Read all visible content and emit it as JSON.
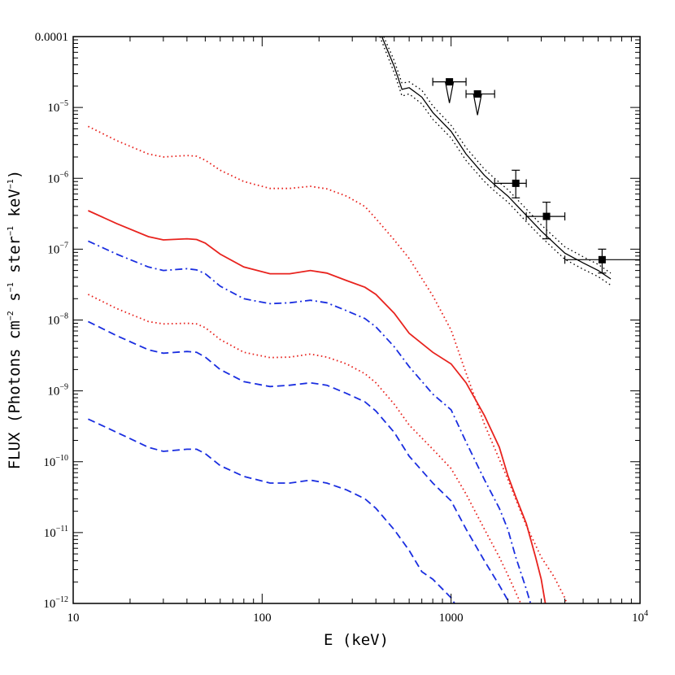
{
  "chart_data": {
    "type": "line",
    "x_scale": "log",
    "y_scale": "log",
    "xlim": [
      10,
      10000
    ],
    "ylim": [
      1e-12,
      0.0001
    ],
    "xlabel": "E (keV)",
    "ylabel": {
      "pre": "FLUX (Photons cm",
      "sup1": "−2",
      "mid1": " s",
      "sup2": "−1",
      "mid2": " ster",
      "sup3": "−1",
      "mid3": " keV",
      "sup4": "−1",
      "post": ")"
    },
    "x_ticks": [
      {
        "value": 10,
        "label": "10",
        "sup": ""
      },
      {
        "value": 100,
        "label": "100",
        "sup": ""
      },
      {
        "value": 1000,
        "label": "1000",
        "sup": ""
      },
      {
        "value": 10000,
        "label": "10",
        "sup": "4"
      }
    ],
    "y_ticks": [
      {
        "value": 0.0001,
        "label": "0.0001",
        "sup": ""
      },
      {
        "value": 1e-05,
        "label": "10",
        "sup": "−5"
      },
      {
        "value": 1e-06,
        "label": "10",
        "sup": "−6"
      },
      {
        "value": 1e-07,
        "label": "10",
        "sup": "−7"
      },
      {
        "value": 1e-08,
        "label": "10",
        "sup": "−8"
      },
      {
        "value": 1e-09,
        "label": "10",
        "sup": "−9"
      },
      {
        "value": 1e-10,
        "label": "10",
        "sup": "−10"
      },
      {
        "value": 1e-11,
        "label": "10",
        "sup": "−11"
      },
      {
        "value": 1e-12,
        "label": "10",
        "sup": "−12"
      }
    ],
    "colors": {
      "red": "#e8231e",
      "blue": "#1a2ee0",
      "black": "#000000"
    },
    "series": [
      {
        "color": "red",
        "style": "dotted",
        "x": [
          12,
          17,
          25,
          30,
          40,
          45,
          50,
          60,
          80,
          110,
          140,
          180,
          220,
          280,
          350,
          400,
          500,
          600,
          800,
          1000,
          1200,
          1500,
          2000,
          2500,
          3000,
          3500,
          4000,
          4500
        ],
        "y": [
          5.4e-06,
          3.4e-06,
          2.2e-06,
          2e-06,
          2.1e-06,
          2.05e-06,
          1.8e-06,
          1.3e-06,
          9e-07,
          7.2e-07,
          7.2e-07,
          7.7e-07,
          7.1e-07,
          5.6e-07,
          4e-07,
          2.7e-07,
          1.35e-07,
          7.4e-08,
          2.2e-08,
          7.2e-09,
          1.78e-09,
          3.4e-10,
          5.6e-11,
          1.26e-11,
          4.5e-12,
          2.4e-12,
          1.2e-12,
          5e-13
        ]
      },
      {
        "color": "red",
        "style": "solid",
        "x": [
          12,
          17,
          25,
          30,
          40,
          45,
          50,
          60,
          80,
          110,
          140,
          180,
          220,
          280,
          350,
          400,
          500,
          600,
          800,
          1000,
          1200,
          1500,
          1800,
          2000,
          2200,
          2500,
          2800,
          3000,
          3200
        ],
        "y": [
          3.5e-07,
          2.3e-07,
          1.5e-07,
          1.35e-07,
          1.4e-07,
          1.37e-07,
          1.22e-07,
          8.5e-08,
          5.6e-08,
          4.5e-08,
          4.5e-08,
          5e-08,
          4.6e-08,
          3.6e-08,
          2.9e-08,
          2.3e-08,
          1.25e-08,
          6.5e-09,
          3.5e-09,
          2.4e-09,
          1.3e-09,
          4.5e-10,
          1.6e-10,
          6.3e-11,
          3.2e-11,
          1.35e-11,
          4.5e-12,
          2.2e-12,
          8e-13
        ]
      },
      {
        "color": "blue",
        "style": "dashdot",
        "x": [
          12,
          17,
          25,
          30,
          40,
          45,
          50,
          60,
          80,
          110,
          140,
          180,
          220,
          280,
          350,
          400,
          500,
          600,
          800,
          1000,
          1200,
          1500,
          1800,
          2000,
          2200,
          2500,
          2700
        ],
        "y": [
          1.3e-07,
          8.5e-08,
          5.6e-08,
          5e-08,
          5.3e-08,
          5.1e-08,
          4.5e-08,
          3e-08,
          2e-08,
          1.7e-08,
          1.75e-08,
          1.9e-08,
          1.75e-08,
          1.35e-08,
          1.05e-08,
          8e-09,
          4.2e-09,
          2.2e-09,
          9e-10,
          5.4e-10,
          1.9e-10,
          5.6e-11,
          2.2e-11,
          1.1e-11,
          4.5e-12,
          1.6e-12,
          8e-13
        ]
      },
      {
        "color": "red",
        "style": "dotted",
        "x": [
          12,
          17,
          25,
          30,
          40,
          45,
          50,
          60,
          80,
          110,
          140,
          180,
          220,
          280,
          350,
          400,
          500,
          600,
          800,
          1000,
          1200,
          1500,
          1800,
          2000,
          2300,
          2500
        ],
        "y": [
          2.3e-08,
          1.45e-08,
          9.5e-09,
          8.8e-09,
          9e-09,
          8.8e-09,
          7.8e-09,
          5.3e-09,
          3.5e-09,
          2.95e-09,
          3e-09,
          3.3e-09,
          3e-09,
          2.4e-09,
          1.75e-09,
          1.3e-09,
          6.5e-10,
          3.3e-10,
          1.5e-10,
          8e-11,
          3.5e-11,
          1.12e-11,
          4.5e-12,
          2.5e-12,
          1.1e-12,
          7e-13
        ]
      },
      {
        "color": "blue",
        "style": "dashed",
        "x": [
          12,
          17,
          25,
          30,
          40,
          45,
          50,
          60,
          80,
          110,
          140,
          180,
          220,
          280,
          350,
          400,
          500,
          600,
          800,
          1000,
          1200,
          1500,
          1800,
          2000,
          2200
        ],
        "y": [
          9.5e-09,
          6e-09,
          3.8e-09,
          3.4e-09,
          3.6e-09,
          3.5e-09,
          3e-09,
          2e-09,
          1.35e-09,
          1.15e-09,
          1.2e-09,
          1.3e-09,
          1.2e-09,
          9.2e-10,
          7e-10,
          5.2e-10,
          2.6e-10,
          1.2e-10,
          5e-11,
          2.8e-11,
          1.12e-11,
          4e-12,
          1.8e-12,
          1.1e-12,
          6e-13
        ]
      },
      {
        "color": "blue",
        "style": "dashed",
        "x": [
          12,
          17,
          25,
          30,
          40,
          45,
          50,
          60,
          80,
          110,
          140,
          180,
          220,
          280,
          350,
          400,
          500,
          600,
          700,
          800,
          1000,
          1100,
          1200
        ],
        "y": [
          4e-10,
          2.6e-10,
          1.6e-10,
          1.4e-10,
          1.5e-10,
          1.5e-10,
          1.3e-10,
          8.8e-11,
          6.2e-11,
          5e-11,
          5e-11,
          5.5e-11,
          5e-11,
          4e-11,
          3e-11,
          2.2e-11,
          1.1e-11,
          5.6e-12,
          2.8e-12,
          2.2e-12,
          1.2e-12,
          8e-13,
          5e-13
        ]
      },
      {
        "color": "black",
        "style": "solid",
        "x": [
          430,
          500,
          550,
          600,
          700,
          800,
          1000,
          1200,
          1500,
          1700,
          2000,
          2500,
          3000,
          4000,
          5000,
          6000,
          7000
        ],
        "y": [
          0.0001,
          3.8e-05,
          1.8e-05,
          1.9e-05,
          1.4e-05,
          8.5e-06,
          4.6e-06,
          2.2e-06,
          1.1e-06,
          8.1e-07,
          5.6e-07,
          3e-07,
          1.8e-07,
          8.8e-08,
          6.4e-08,
          5e-08,
          3.8e-08
        ]
      },
      {
        "color": "black",
        "style": "dotted",
        "x": [
          440,
          500,
          550,
          600,
          700,
          800,
          1000,
          1200,
          1500,
          1700,
          2000,
          2500,
          3000,
          4000,
          5000,
          6000,
          7000
        ],
        "y": [
          0.0001,
          4.6e-05,
          2.2e-05,
          2.3e-05,
          1.75e-05,
          1.05e-05,
          5.6e-06,
          2.7e-06,
          1.35e-06,
          1e-06,
          6.9e-07,
          3.7e-07,
          2.2e-07,
          1.08e-07,
          7.8e-08,
          6.1e-08,
          4.6e-08
        ]
      },
      {
        "color": "black",
        "style": "dotted",
        "x": [
          420,
          500,
          550,
          600,
          700,
          800,
          1000,
          1200,
          1500,
          1700,
          2000,
          2500,
          3000,
          4000,
          5000,
          6000,
          7000
        ],
        "y": [
          0.0001,
          3.1e-05,
          1.45e-05,
          1.55e-05,
          1.12e-05,
          6.8e-06,
          3.7e-06,
          1.78e-06,
          9e-07,
          6.6e-07,
          4.6e-07,
          2.45e-07,
          1.48e-07,
          7.2e-08,
          5.2e-08,
          4.1e-08,
          3.1e-08
        ]
      }
    ],
    "data_points": [
      {
        "x": 980,
        "y": 2.3e-05,
        "x_err": [
          800,
          1200
        ],
        "upper_limit": true
      },
      {
        "x": 1380,
        "y": 1.55e-05,
        "x_err": [
          1200,
          1700
        ],
        "upper_limit": true
      },
      {
        "x": 2200,
        "y": 8.5e-07,
        "x_err": [
          1700,
          2500
        ],
        "y_err": [
          5.3e-07,
          1.3e-06
        ]
      },
      {
        "x": 3200,
        "y": 2.9e-07,
        "x_err": [
          2500,
          4000
        ],
        "y_err": [
          1.4e-07,
          4.6e-07
        ]
      },
      {
        "x": 6300,
        "y": 7.1e-08,
        "x_err": [
          4000,
          10000
        ],
        "y_err": [
          4.6e-08,
          1e-07
        ]
      }
    ]
  }
}
